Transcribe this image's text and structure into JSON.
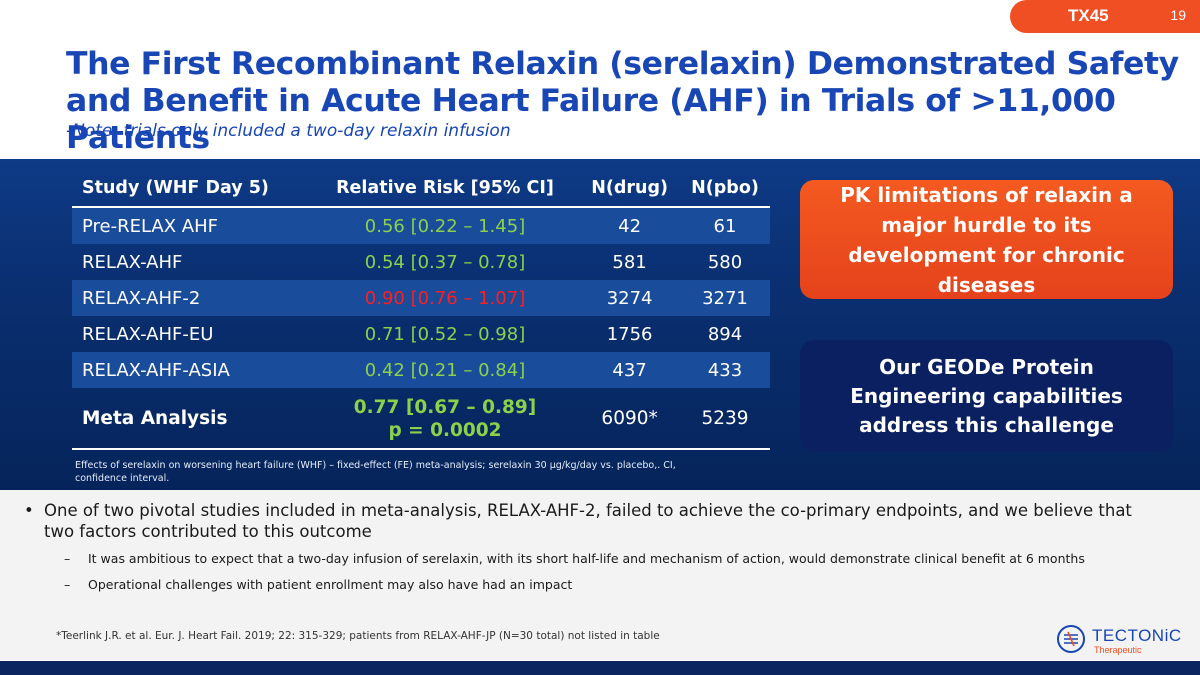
{
  "header": {
    "code": "TX45",
    "page_number": "19",
    "title": "The First Recombinant Relaxin (serelaxin) Demonstrated Safety and Benefit in Acute Heart Failure (AHF) in Trials of >11,000 Patients",
    "subtitle": "-Note: trials only included a two-day relaxin infusion"
  },
  "table": {
    "columns": [
      "Study (WHF Day 5)",
      "Relative Risk [95% CI]",
      "N(drug)",
      "N(pbo)"
    ],
    "rows": [
      {
        "study": "Pre-RELAX AHF",
        "rr": "0.56 [0.22 – 1.45]",
        "n_drug": "42",
        "n_pbo": "61",
        "rr_color": "#8bd14a"
      },
      {
        "study": "RELAX-AHF",
        "rr": "0.54 [0.37 – 0.78]",
        "n_drug": "581",
        "n_pbo": "580",
        "rr_color": "#8bd14a"
      },
      {
        "study": "RELAX-AHF-2",
        "rr": "0.90 [0.76 – 1.07]",
        "n_drug": "3274",
        "n_pbo": "3271",
        "rr_color": "#ff1e1e"
      },
      {
        "study": "RELAX-AHF-EU",
        "rr": "0.71 [0.52 – 0.98]",
        "n_drug": "1756",
        "n_pbo": "894",
        "rr_color": "#8bd14a"
      },
      {
        "study": "RELAX-AHF-ASIA",
        "rr": "0.42 [0.21 – 0.84]",
        "n_drug": "437",
        "n_pbo": "433",
        "rr_color": "#8bd14a"
      }
    ],
    "meta": {
      "study": "Meta Analysis",
      "rr": "0.77 [0.67 – 0.89]",
      "p": "p = 0.0002",
      "n_drug": "6090*",
      "n_pbo": "5239"
    },
    "footnote": "Effects of serelaxin on worsening heart failure (WHF) – fixed-effect (FE) meta-analysis; serelaxin 30 µg/kg/day vs. placebo,. CI, confidence interval."
  },
  "callouts": {
    "orange": "PK limitations of relaxin a major hurdle to its development for chronic diseases",
    "navy": "Our GEODe Protein Engineering capabilities address this challenge"
  },
  "bullets": {
    "main": "One of two pivotal studies included in meta-analysis, RELAX-AHF-2, failed to achieve the co-primary endpoints, and we believe that two factors contributed to this outcome",
    "sub": [
      "It was ambitious to expect that a two-day infusion of serelaxin, with its short half-life and mechanism of action, would demonstrate clinical benefit at 6 months",
      "Operational challenges with patient enrollment may also have had an impact"
    ],
    "bullet_glyph": "•",
    "dash_glyph": "–"
  },
  "reference": "*Teerlink J.R. et al. Eur. J. Heart Fail. 2019; 22: 315-329; patients from RELAX-AHF-JP (N=30 total) not listed in table",
  "logo": {
    "name": "TECTONiC",
    "sub": "Therapeutic",
    "icon": "tectonic-logo-icon"
  },
  "colors": {
    "brand_blue": "#1846b5",
    "accent_orange": "#f04e23",
    "green": "#8bd14a",
    "red": "#ff1e1e",
    "navy": "#0b2060"
  }
}
